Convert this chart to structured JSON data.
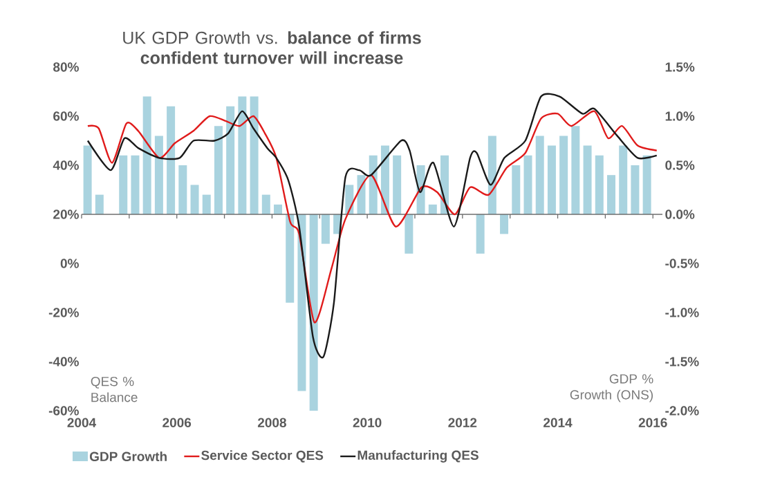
{
  "chart_data": {
    "type": "line",
    "title": "UK GDP Growth vs. **balance of firms confident turnover will increase**",
    "ylabel": "QES % Balance",
    "y2label": "GDP % Growth (ONS)",
    "xlim": [
      2004,
      2016.2
    ],
    "xticks": [
      2004,
      {
        "value": 2005,
        "label": null
      },
      2006,
      {
        "value": 2007,
        "label": null
      },
      2008,
      {
        "value": 2009,
        "label": null
      },
      2010,
      {
        "value": 2011,
        "label": null
      },
      2012,
      {
        "value": 2013,
        "label": null
      },
      2014,
      {
        "value": 2015,
        "label": null
      },
      2016
    ],
    "ylim": [
      -60,
      80
    ],
    "yticks": [
      {
        "value": -60,
        "label": "-60%"
      },
      {
        "value": -40,
        "label": "-40%"
      },
      {
        "value": -20,
        "label": "-20%"
      },
      {
        "value": 0,
        "label": "0%"
      },
      {
        "value": 20,
        "label": "20%"
      },
      {
        "value": 40,
        "label": "40%"
      },
      {
        "value": 60,
        "label": "60%"
      },
      {
        "value": 80,
        "label": "80%"
      }
    ],
    "y2lim": [
      -2.0,
      1.5
    ],
    "y2ticks": [
      {
        "value": -2.0,
        "label": "-2.0%"
      },
      {
        "value": -1.5,
        "label": "-1.5%"
      },
      {
        "value": -1.0,
        "label": "-1.0%"
      },
      {
        "value": -0.5,
        "label": "-0.5%"
      },
      {
        "value": 0.0,
        "label": "0.0%"
      },
      {
        "value": 0.5,
        "label": "0.5%"
      },
      {
        "value": 1.0,
        "label": "1.0%"
      },
      {
        "value": 1.5,
        "label": "1.5%"
      }
    ],
    "legend": "bottom",
    "series": [
      {
        "name": "GDP Growth",
        "type": "bar",
        "axis": "y2",
        "color": "#a9d3df",
        "x": [
          2004.125,
          2004.375,
          2004.625,
          2004.875,
          2005.125,
          2005.375,
          2005.625,
          2005.875,
          2006.125,
          2006.375,
          2006.625,
          2006.875,
          2007.125,
          2007.375,
          2007.625,
          2007.875,
          2008.125,
          2008.375,
          2008.625,
          2008.875,
          2009.125,
          2009.375,
          2009.625,
          2009.875,
          2010.125,
          2010.375,
          2010.625,
          2010.875,
          2011.125,
          2011.375,
          2011.625,
          2011.875,
          2012.125,
          2012.375,
          2012.625,
          2012.875,
          2013.125,
          2013.375,
          2013.625,
          2013.875,
          2014.125,
          2014.375,
          2014.625,
          2014.875,
          2015.125,
          2015.375,
          2015.625,
          2015.875
        ],
        "values": [
          0.7,
          0.2,
          0.0,
          0.6,
          0.6,
          1.2,
          0.8,
          1.1,
          0.5,
          0.3,
          0.2,
          0.9,
          1.1,
          1.2,
          1.2,
          0.2,
          0.1,
          -0.9,
          -1.8,
          -2.0,
          -0.3,
          -0.2,
          0.3,
          0.4,
          0.6,
          0.7,
          0.6,
          -0.4,
          0.5,
          0.1,
          0.6,
          0.0,
          0.0,
          -0.4,
          0.8,
          -0.2,
          0.5,
          0.6,
          0.8,
          0.7,
          0.8,
          0.9,
          0.7,
          0.6,
          0.4,
          0.7,
          0.5,
          0.6
        ]
      },
      {
        "name": "Service Sector QES",
        "color": "#e01b1b",
        "x": [
          2004.13,
          2004.36,
          2004.64,
          2004.94,
          2005.19,
          2005.63,
          2005.96,
          2006.35,
          2006.69,
          2007.03,
          2007.32,
          2007.61,
          2007.85,
          2008.09,
          2008.38,
          2008.57,
          2008.89,
          2009.25,
          2009.54,
          2010.08,
          2010.6,
          2011.14,
          2011.47,
          2011.84,
          2012.16,
          2012.55,
          2012.93,
          2013.32,
          2013.65,
          2014.0,
          2014.29,
          2014.77,
          2015.06,
          2015.35,
          2015.68,
          2016.08
        ],
        "values": [
          56,
          55,
          41,
          57,
          54,
          43,
          49,
          54,
          60,
          58,
          56,
          60,
          53,
          43,
          17,
          12,
          -24,
          -2,
          18,
          36,
          15,
          31,
          29,
          20,
          31,
          28,
          39,
          45,
          59,
          61,
          56,
          62,
          51,
          56,
          48,
          46
        ]
      },
      {
        "name": "Manufacturing QES",
        "color": "#1a1a1a",
        "x": [
          2004.13,
          2004.61,
          2004.9,
          2005.19,
          2005.63,
          2006.06,
          2006.35,
          2006.79,
          2007.08,
          2007.37,
          2007.61,
          2007.9,
          2008.09,
          2008.34,
          2008.57,
          2008.86,
          2009.08,
          2009.3,
          2009.54,
          2009.83,
          2010.08,
          2010.71,
          2010.89,
          2011.11,
          2011.39,
          2011.82,
          2012.16,
          2012.3,
          2012.59,
          2012.88,
          2013.32,
          2013.65,
          2014.04,
          2014.52,
          2014.77,
          2015.25,
          2015.68,
          2016.08
        ],
        "values": [
          50,
          38,
          51,
          47,
          43,
          43,
          50,
          50,
          53,
          62,
          55,
          47,
          43,
          34,
          15,
          -30,
          -38,
          -16,
          35,
          38,
          36,
          50,
          46,
          29,
          41,
          15,
          43,
          45,
          32,
          43,
          50,
          68,
          68,
          61,
          63,
          52,
          43,
          44
        ]
      }
    ]
  }
}
